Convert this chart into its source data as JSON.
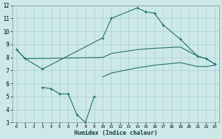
{
  "title": "",
  "xlabel": "Humidex (Indice chaleur)",
  "ylabel": "",
  "xlim": [
    -0.5,
    23.5
  ],
  "ylim": [
    3,
    12
  ],
  "xticks": [
    0,
    1,
    2,
    3,
    4,
    5,
    6,
    7,
    8,
    9,
    10,
    11,
    12,
    13,
    14,
    15,
    16,
    17,
    18,
    19,
    20,
    21,
    22,
    23
  ],
  "yticks": [
    3,
    4,
    5,
    6,
    7,
    8,
    9,
    10,
    11,
    12
  ],
  "bg_color": "#cce8e8",
  "grid_color": "#aacccc",
  "line_color": "#1a6b6b",
  "lines": [
    {
      "x": [
        0,
        1,
        3,
        10,
        11,
        14,
        15,
        16,
        17,
        19,
        21,
        22,
        23
      ],
      "y": [
        8.6,
        7.9,
        7.1,
        9.5,
        11.0,
        11.8,
        11.5,
        11.4,
        10.5,
        9.4,
        8.1,
        7.9,
        7.5
      ],
      "markers": true
    },
    {
      "x": [
        0,
        1,
        10,
        11,
        14,
        16,
        19,
        21,
        22,
        23
      ],
      "y": [
        8.6,
        7.9,
        8.0,
        8.3,
        8.6,
        8.7,
        8.8,
        8.1,
        7.9,
        7.5
      ],
      "markers": false
    },
    {
      "x": [
        10,
        11,
        14,
        16,
        19,
        21,
        22,
        23
      ],
      "y": [
        6.5,
        6.8,
        7.2,
        7.4,
        7.6,
        7.3,
        7.3,
        7.4
      ],
      "markers": false
    },
    {
      "x": [
        3,
        4,
        5,
        6,
        7,
        8,
        9
      ],
      "y": [
        5.7,
        5.6,
        5.2,
        5.2,
        3.6,
        3.0,
        5.0
      ],
      "markers": true
    }
  ]
}
